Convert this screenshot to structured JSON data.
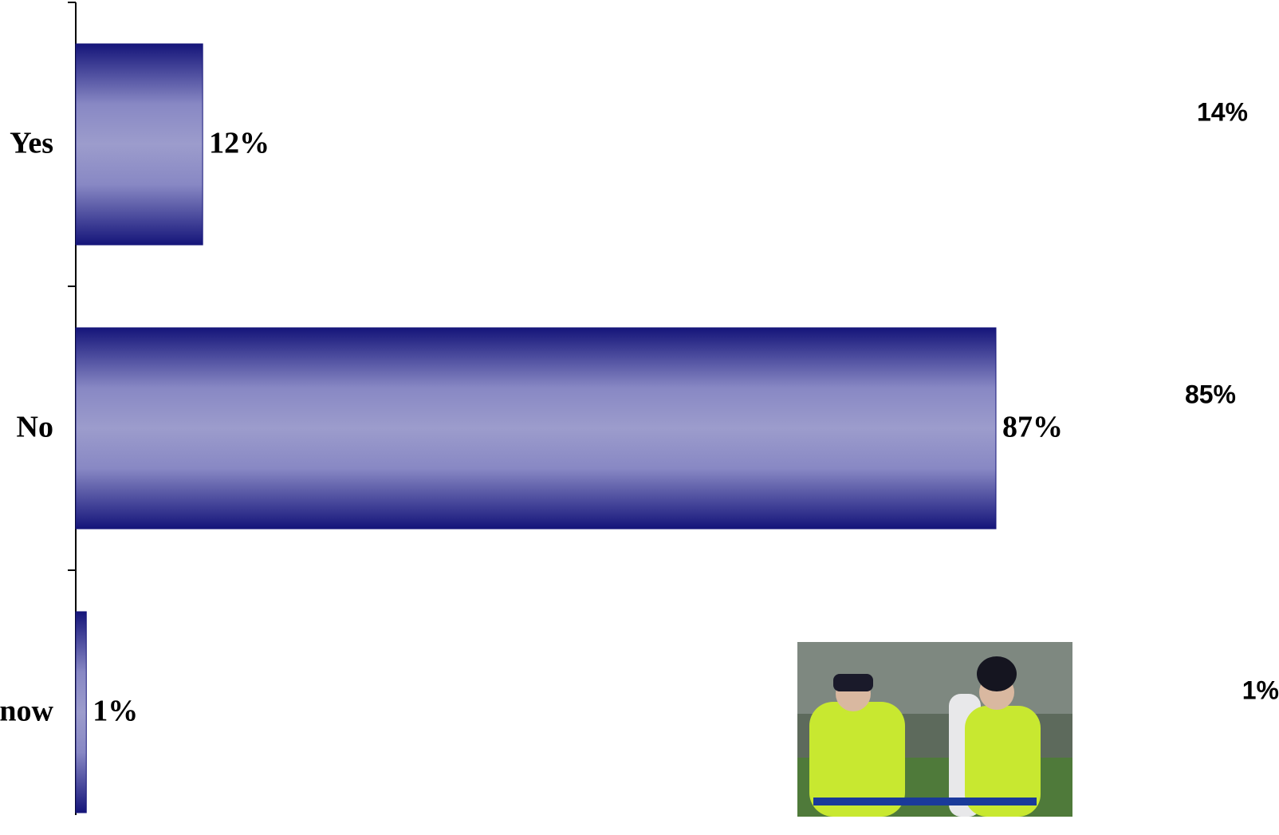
{
  "chart_data": {
    "type": "bar",
    "orientation": "horizontal",
    "categories": [
      "Yes",
      "No",
      "now"
    ],
    "values": [
      12,
      87,
      1
    ],
    "value_labels": [
      "12%",
      "87%",
      "1%"
    ],
    "xlim": [
      0,
      100
    ],
    "color": "#15157a",
    "annotations": [
      "14%",
      "85%",
      "1%"
    ]
  }
}
